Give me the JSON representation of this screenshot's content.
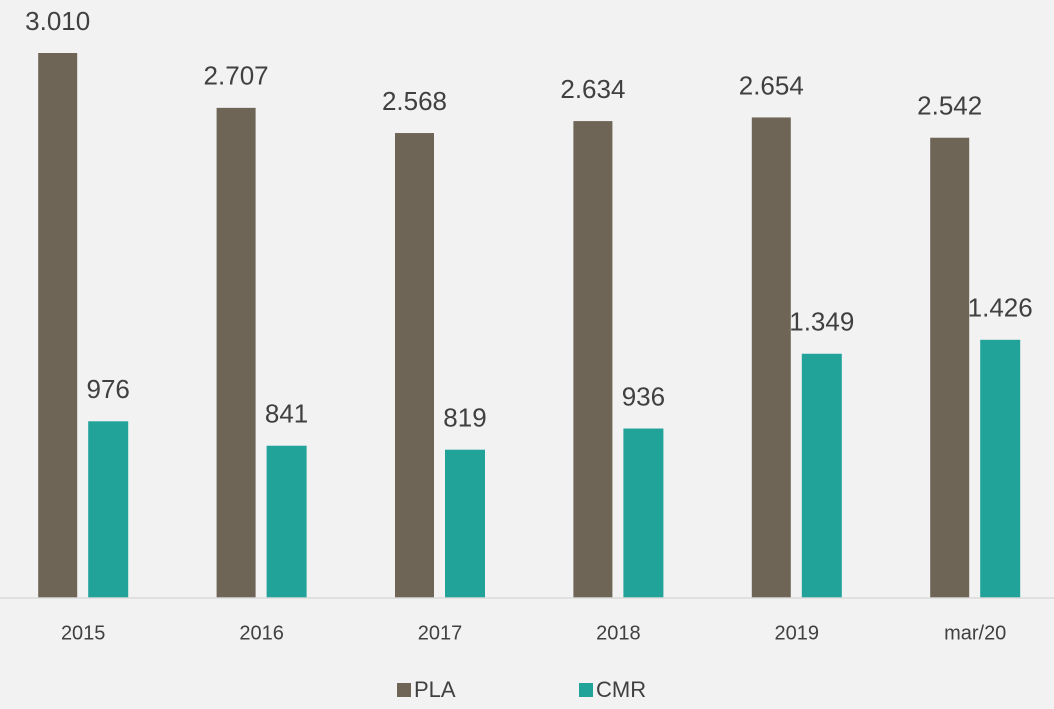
{
  "chart_data": {
    "type": "bar",
    "categories": [
      "2015",
      "2016",
      "2017",
      "2018",
      "2019",
      "mar/20"
    ],
    "series": [
      {
        "name": "PLA",
        "color": "#6e6556",
        "values": [
          3010,
          2707,
          2568,
          2634,
          2654,
          2542
        ],
        "value_labels": [
          "3.010",
          "2.707",
          "2.568",
          "2.634",
          "2.654",
          "2.542"
        ]
      },
      {
        "name": "CMR",
        "color": "#21a39a",
        "values": [
          976,
          841,
          819,
          936,
          1349,
          1426
        ],
        "value_labels": [
          "976",
          "841",
          "819",
          "936",
          "1.349",
          "1.426"
        ]
      }
    ],
    "legend": "bottom"
  }
}
